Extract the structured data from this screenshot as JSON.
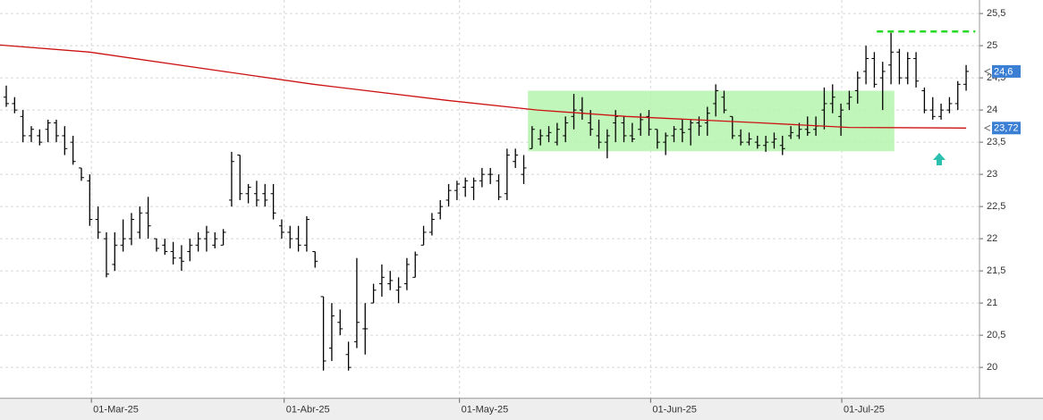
{
  "chart_data": {
    "type": "ohlc",
    "x": [
      0,
      1,
      2,
      3,
      4,
      5,
      6,
      7,
      8,
      9,
      10,
      11,
      12,
      13,
      14,
      15,
      16,
      17,
      18,
      19,
      20,
      21,
      22,
      23,
      24,
      25,
      26,
      27,
      28,
      29,
      30,
      31,
      32,
      33,
      34,
      35,
      36,
      37,
      38,
      39,
      40,
      41,
      42,
      43,
      44,
      45,
      46,
      47,
      48,
      49,
      50,
      51,
      52,
      53,
      54,
      55,
      56,
      57,
      58,
      59,
      60,
      61,
      62,
      63,
      64,
      65,
      66,
      67,
      68,
      69,
      70,
      71,
      72,
      73,
      74,
      75,
      76,
      77,
      78,
      79,
      80,
      81,
      82,
      83,
      84,
      85,
      86,
      87,
      88,
      89,
      90,
      91,
      92,
      93,
      94,
      95,
      96,
      97,
      98,
      99,
      100,
      101,
      102,
      103,
      104,
      105,
      106,
      107,
      108,
      109,
      110,
      111,
      112,
      113,
      114,
      115
    ],
    "open": [
      24.2,
      24.1,
      23.9,
      23.6,
      23.6,
      23.7,
      23.8,
      23.6,
      23.5,
      23.1,
      22.9,
      22.3,
      22.0,
      21.6,
      21.9,
      22.0,
      22.1,
      22.4,
      22.0,
      21.9,
      21.8,
      21.7,
      21.8,
      21.9,
      22.0,
      21.9,
      21.9,
      22.6,
      23.3,
      22.7,
      22.7,
      22.7,
      22.7,
      22.2,
      22.1,
      22.0,
      21.9,
      21.8,
      21.1,
      20.3,
      20.7,
      20.2,
      20.4,
      20.6,
      21.0,
      21.3,
      21.3,
      21.2,
      21.3,
      21.4,
      21.9,
      22.1,
      22.4,
      22.6,
      22.75,
      22.8,
      22.8,
      22.9,
      23.0,
      22.9,
      22.7,
      23.2,
      23.0,
      23.4,
      23.55,
      23.6,
      23.5,
      23.6,
      23.9,
      24.0,
      23.8,
      23.6,
      23.5,
      23.8,
      23.8,
      23.6,
      23.7,
      23.9,
      23.7,
      23.5,
      23.6,
      23.7,
      23.7,
      23.8,
      23.8,
      24.1,
      24.2,
      23.9,
      23.6,
      23.5,
      23.5,
      23.45,
      23.5,
      23.45,
      23.6,
      23.6,
      23.7,
      23.7,
      24.0,
      24.1,
      23.9,
      24.1,
      24.3,
      24.6,
      24.8,
      24.5,
      24.7,
      24.9,
      24.5,
      24.8,
      24.3,
      24.0,
      23.9,
      24.0,
      24.1,
      24.4
    ],
    "high": [
      24.38,
      24.2,
      24.0,
      23.75,
      23.7,
      23.85,
      23.85,
      23.75,
      23.6,
      23.1,
      23.0,
      22.5,
      22.1,
      22.1,
      22.3,
      22.4,
      22.5,
      22.65,
      22.0,
      22.0,
      21.95,
      21.9,
      22.0,
      22.1,
      22.2,
      22.1,
      22.15,
      23.35,
      23.3,
      22.85,
      22.9,
      22.85,
      22.85,
      22.3,
      22.2,
      22.2,
      22.35,
      21.8,
      21.1,
      21.0,
      20.9,
      20.4,
      21.7,
      21.0,
      21.3,
      21.6,
      21.5,
      21.4,
      21.7,
      21.8,
      22.2,
      22.4,
      22.6,
      22.85,
      22.9,
      22.95,
      22.95,
      23.1,
      23.1,
      23.0,
      23.4,
      23.4,
      23.3,
      23.75,
      23.7,
      23.75,
      23.8,
      23.9,
      24.25,
      24.2,
      24.0,
      23.85,
      23.7,
      24.0,
      23.9,
      23.8,
      23.95,
      24.0,
      23.7,
      23.65,
      23.75,
      23.85,
      23.85,
      23.9,
      24.05,
      24.4,
      24.3,
      23.9,
      23.7,
      23.65,
      23.6,
      23.6,
      23.65,
      23.6,
      23.75,
      23.8,
      23.9,
      23.9,
      24.35,
      24.4,
      24.1,
      24.3,
      24.6,
      25.0,
      24.9,
      24.75,
      25.2,
      24.95,
      24.9,
      24.9,
      24.35,
      24.2,
      24.1,
      24.2,
      24.45,
      24.7
    ],
    "low": [
      24.05,
      23.95,
      23.5,
      23.5,
      23.45,
      23.5,
      23.5,
      23.3,
      23.15,
      22.9,
      22.2,
      22.0,
      21.4,
      21.5,
      21.8,
      21.9,
      22.0,
      22.0,
      21.8,
      21.75,
      21.6,
      21.5,
      21.65,
      21.8,
      21.8,
      21.85,
      21.9,
      22.5,
      22.6,
      22.55,
      22.5,
      22.5,
      22.3,
      22.0,
      21.85,
      21.8,
      21.8,
      21.55,
      19.95,
      20.1,
      20.5,
      19.95,
      20.3,
      20.2,
      21.0,
      21.1,
      21.2,
      21.0,
      21.2,
      21.4,
      21.9,
      22.05,
      22.3,
      22.5,
      22.6,
      22.65,
      22.6,
      22.8,
      22.85,
      22.6,
      22.6,
      23.1,
      22.85,
      23.4,
      23.45,
      23.5,
      23.45,
      23.5,
      23.7,
      23.85,
      23.6,
      23.4,
      23.25,
      23.5,
      23.5,
      23.5,
      23.6,
      23.6,
      23.4,
      23.3,
      23.5,
      23.5,
      23.45,
      23.6,
      23.6,
      23.9,
      23.95,
      23.55,
      23.45,
      23.45,
      23.4,
      23.35,
      23.4,
      23.3,
      23.55,
      23.55,
      23.6,
      23.6,
      23.7,
      23.95,
      23.6,
      24.0,
      24.1,
      24.4,
      24.35,
      24.0,
      24.4,
      24.4,
      24.4,
      24.35,
      23.95,
      23.85,
      23.85,
      23.95,
      24.0,
      24.3
    ],
    "close": [
      24.1,
      24.0,
      23.6,
      23.7,
      23.5,
      23.8,
      23.6,
      23.4,
      23.2,
      22.95,
      22.3,
      22.1,
      21.45,
      21.9,
      22.0,
      22.3,
      22.4,
      22.2,
      21.85,
      21.8,
      21.7,
      21.65,
      21.9,
      22.0,
      22.1,
      22.0,
      22.1,
      23.2,
      22.7,
      22.8,
      22.6,
      22.6,
      22.4,
      22.1,
      22.0,
      21.9,
      22.3,
      21.65,
      20.1,
      20.8,
      20.6,
      20.0,
      20.7,
      20.6,
      21.2,
      21.4,
      21.35,
      21.25,
      21.6,
      21.75,
      22.1,
      22.3,
      22.5,
      22.75,
      22.85,
      22.9,
      22.9,
      23.0,
      23.0,
      22.65,
      23.3,
      23.3,
      23.1,
      23.7,
      23.6,
      23.65,
      23.7,
      23.8,
      24.0,
      23.95,
      23.7,
      23.5,
      23.6,
      23.9,
      23.6,
      23.55,
      23.85,
      23.7,
      23.5,
      23.6,
      23.7,
      23.65,
      23.8,
      23.75,
      23.95,
      24.3,
      24.0,
      23.6,
      23.5,
      23.55,
      23.45,
      23.5,
      23.55,
      23.4,
      23.65,
      23.7,
      23.65,
      23.75,
      24.1,
      24.2,
      24.0,
      24.2,
      24.5,
      24.8,
      24.4,
      24.6,
      24.9,
      24.5,
      24.8,
      24.45,
      24.0,
      23.9,
      24.0,
      24.1,
      24.4,
      24.6
    ],
    "bar_color": "#000000",
    "moving_average": {
      "color": "#cc1111",
      "x": [
        -0.75,
        10,
        26,
        36.8,
        52.8,
        63.6,
        74.3,
        90.4,
        101,
        115
      ],
      "values": [
        25.01,
        24.9,
        24.6,
        24.4,
        24.15,
        24.0,
        23.9,
        23.8,
        23.73,
        23.72
      ]
    },
    "zones": [
      {
        "x": [
          62.5,
          106.4
        ],
        "y": [
          23.36,
          24.3
        ],
        "color": "#b6f5ae"
      }
    ],
    "levels": [
      {
        "x": [
          104.3,
          116.1
        ],
        "value": 25.22,
        "color": "#22dd22"
      }
    ],
    "price_labels": [
      {
        "value": 24.6,
        "label": "24,6",
        "color": "#3b7fd4"
      },
      {
        "value": 23.72,
        "label": "23,72",
        "color": "#3b7fd4"
      }
    ],
    "xlim": [
      -0.75,
      116.6
    ],
    "ylim": [
      19.52,
      25.71
    ],
    "xticks": [
      {
        "value": 10.2,
        "label": "01-Mar-25"
      },
      {
        "value": 33.3,
        "label": "01-Abr-25"
      },
      {
        "value": 54.3,
        "label": "01-May-25"
      },
      {
        "value": 77.2,
        "label": "01-Jun-25"
      },
      {
        "value": 100.1,
        "label": "01-Jul-25"
      }
    ],
    "yticks": [
      20,
      {
        "value": 20.5,
        "label": "20,5"
      },
      21,
      {
        "value": 21.5,
        "label": "21,5"
      },
      22,
      {
        "value": 22.5,
        "label": "22,5"
      },
      23,
      {
        "value": 23.5,
        "label": "23,5"
      },
      24,
      {
        "value": 24.5,
        "label": "24,5"
      },
      25,
      {
        "value": 25.5,
        "label": "25,5"
      }
    ],
    "grid": true
  }
}
